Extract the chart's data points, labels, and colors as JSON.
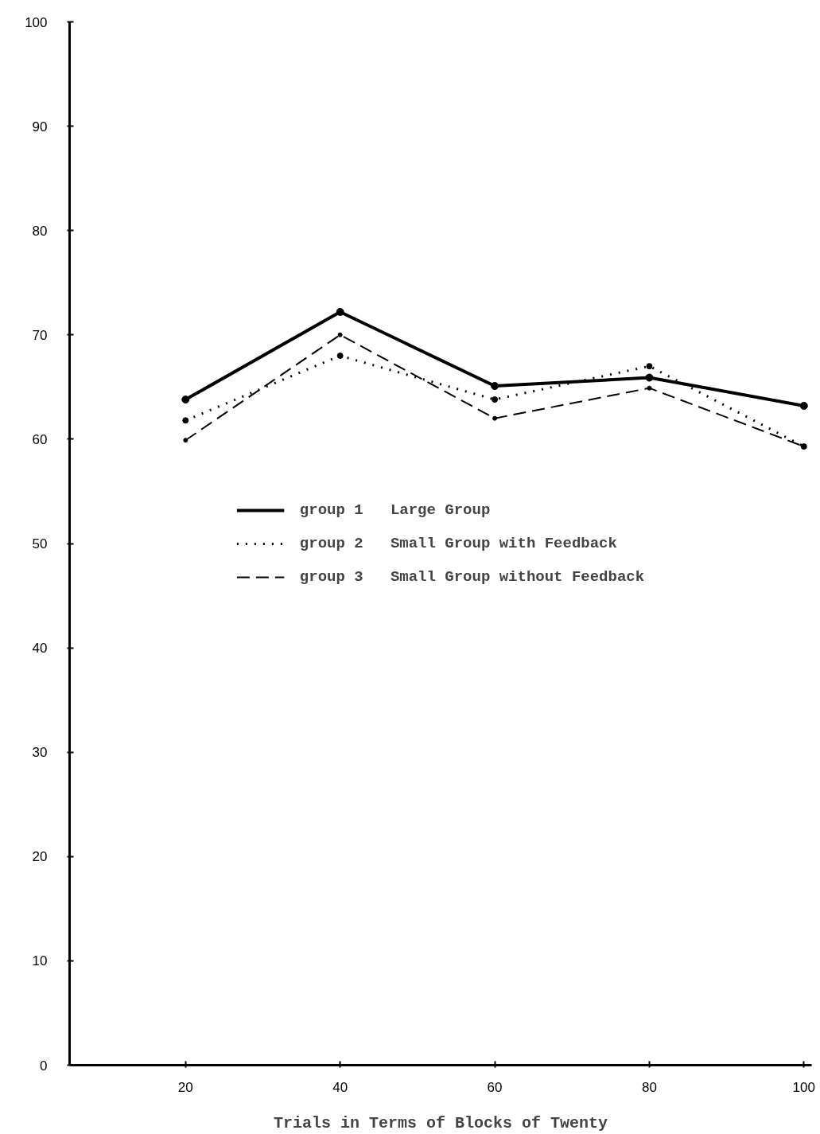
{
  "chart_data": {
    "type": "line",
    "xlabel": "Trials in Terms of Blocks of Twenty",
    "x": [
      20,
      40,
      60,
      80,
      100
    ],
    "series": [
      {
        "name": "group 1   Large Group",
        "color": "#000000",
        "line_style": "solid",
        "values": [
          63.8,
          72.2,
          65.1,
          65.9,
          63.2
        ]
      },
      {
        "name": "group 2   Small Group with Feedback",
        "color": "#000000",
        "line_style": "dotted",
        "values": [
          61.8,
          68.0,
          63.8,
          67.0,
          59.3
        ]
      },
      {
        "name": "group 3   Small Group without Feedback",
        "color": "#000000",
        "line_style": "dashed",
        "values": [
          59.9,
          70.0,
          62.0,
          64.9,
          59.3
        ]
      }
    ],
    "xlim": [
      5,
      101
    ],
    "ylim": [
      0,
      100
    ],
    "xticks": [
      20,
      40,
      60,
      80,
      100
    ],
    "yticks": [
      0,
      10,
      20,
      30,
      40,
      50,
      60,
      70,
      80,
      90,
      100
    ],
    "grid": false,
    "legend": "center",
    "marker": "circle"
  }
}
